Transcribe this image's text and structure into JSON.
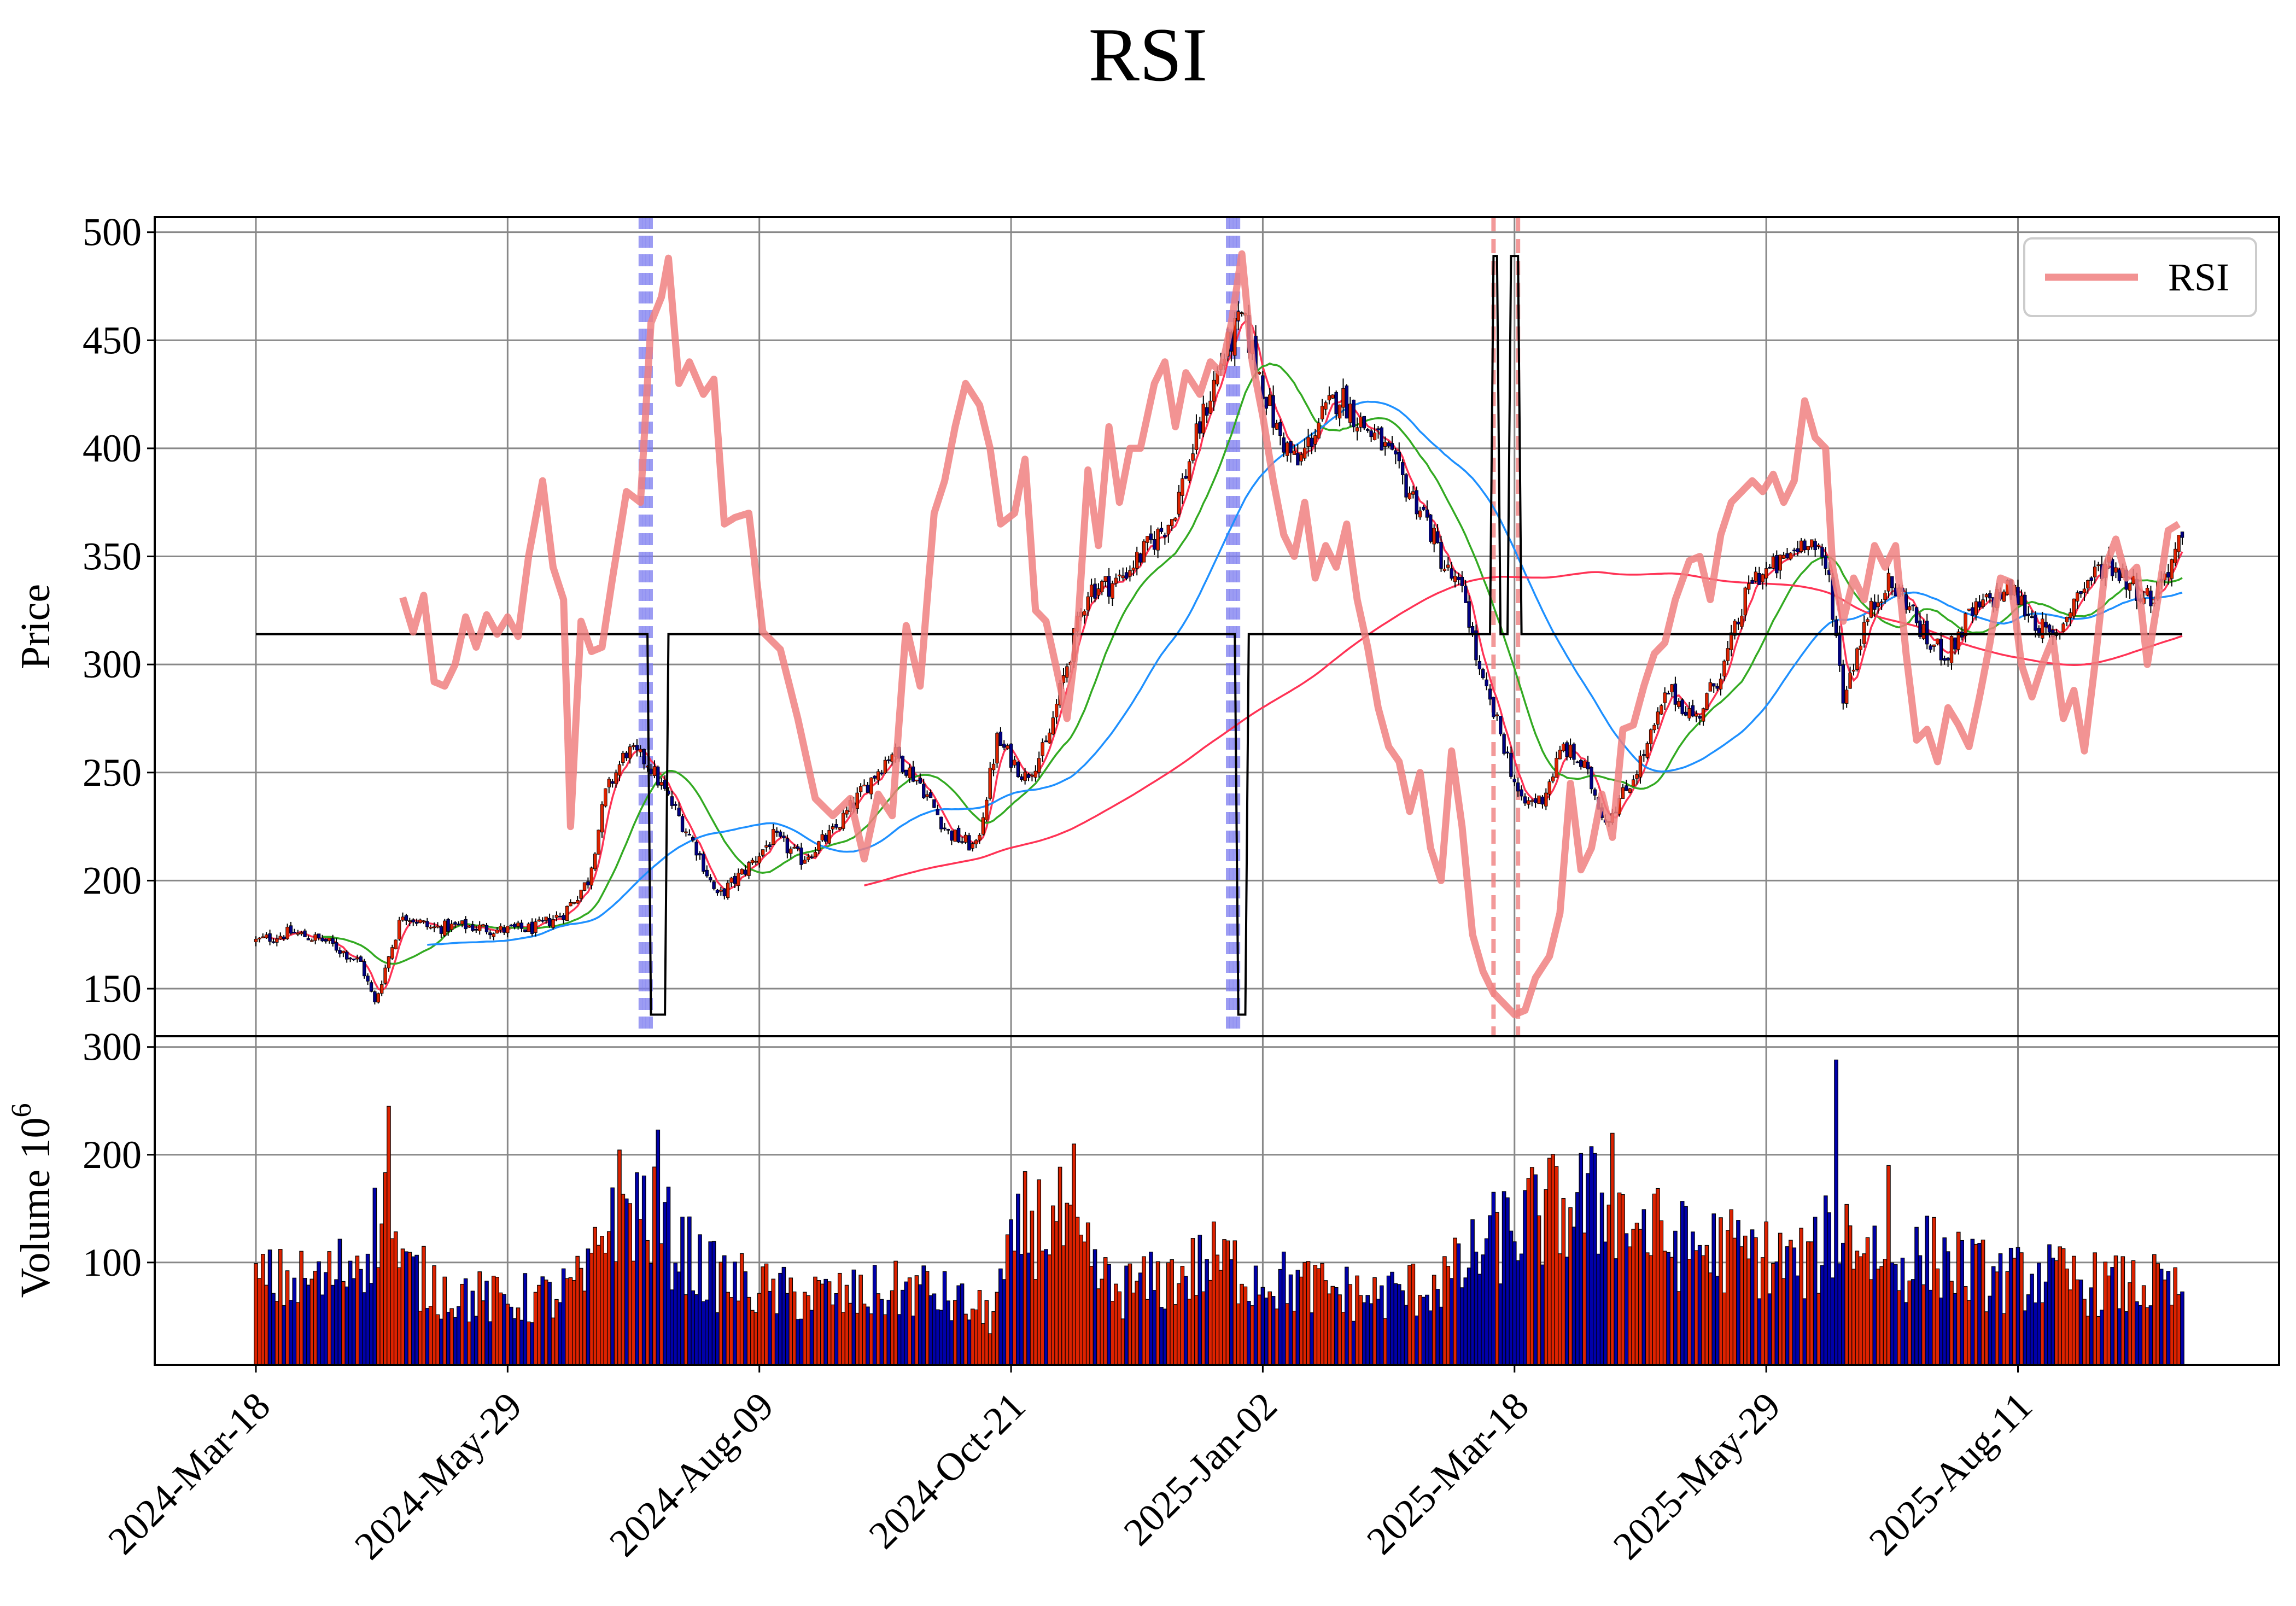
{
  "chart_data": {
    "type": "candlestick",
    "title": "RSI",
    "xticks": [
      "2024-Mar-18",
      "2024-May-29",
      "2024-Aug-09",
      "2024-Oct-21",
      "2025-Jan-02",
      "2025-Mar-18",
      "2025-May-29",
      "2025-Aug-11"
    ],
    "price_panel": {
      "ylabel": "Price",
      "ylim": [
        128,
        507
      ],
      "yticks": [
        150,
        200,
        250,
        300,
        350,
        400,
        450,
        500
      ],
      "grid": true,
      "legend": {
        "position": "top-right",
        "entries": [
          {
            "label": "RSI",
            "color": "#f08080"
          }
        ]
      },
      "price_anchors": [
        [
          0,
          172
        ],
        [
          10,
          176
        ],
        [
          20,
          172
        ],
        [
          30,
          162
        ],
        [
          34,
          143
        ],
        [
          38,
          165
        ],
        [
          42,
          185
        ],
        [
          50,
          178
        ],
        [
          60,
          179
        ],
        [
          70,
          177
        ],
        [
          80,
          178
        ],
        [
          88,
          185
        ],
        [
          95,
          200
        ],
        [
          100,
          240
        ],
        [
          106,
          260
        ],
        [
          112,
          255
        ],
        [
          118,
          238
        ],
        [
          126,
          215
        ],
        [
          132,
          192
        ],
        [
          140,
          205
        ],
        [
          148,
          220
        ],
        [
          156,
          210
        ],
        [
          165,
          222
        ],
        [
          175,
          245
        ],
        [
          182,
          260
        ],
        [
          190,
          245
        ],
        [
          198,
          222
        ],
        [
          206,
          215
        ],
        [
          212,
          265
        ],
        [
          220,
          248
        ],
        [
          226,
          262
        ],
        [
          232,
          300
        ],
        [
          238,
          335
        ],
        [
          246,
          338
        ],
        [
          254,
          352
        ],
        [
          262,
          368
        ],
        [
          270,
          410
        ],
        [
          276,
          440
        ],
        [
          282,
          460
        ],
        [
          286,
          440
        ],
        [
          292,
          408
        ],
        [
          298,
          392
        ],
        [
          304,
          412
        ],
        [
          310,
          425
        ],
        [
          316,
          412
        ],
        [
          322,
          402
        ],
        [
          328,
          385
        ],
        [
          334,
          370
        ],
        [
          340,
          345
        ],
        [
          346,
          330
        ],
        [
          350,
          295
        ],
        [
          356,
          268
        ],
        [
          362,
          235
        ],
        [
          368,
          238
        ],
        [
          374,
          262
        ],
        [
          380,
          252
        ],
        [
          386,
          228
        ],
        [
          392,
          242
        ],
        [
          398,
          262
        ],
        [
          404,
          288
        ],
        [
          412,
          275
        ],
        [
          420,
          300
        ],
        [
          428,
          340
        ],
        [
          436,
          346
        ],
        [
          444,
          360
        ],
        [
          450,
          340
        ],
        [
          454,
          285
        ],
        [
          460,
          318
        ],
        [
          466,
          338
        ],
        [
          472,
          330
        ],
        [
          478,
          310
        ],
        [
          484,
          305
        ],
        [
          490,
          322
        ],
        [
          496,
          330
        ],
        [
          502,
          335
        ],
        [
          508,
          322
        ],
        [
          514,
          310
        ],
        [
          520,
          330
        ],
        [
          526,
          342
        ],
        [
          530,
          348
        ],
        [
          536,
          338
        ],
        [
          542,
          330
        ],
        [
          548,
          348
        ],
        [
          550,
          355
        ]
      ],
      "rsi_series": {
        "name": "RSI",
        "color": "#f08080",
        "anchors": [
          [
            42,
            331
          ],
          [
            45,
            315
          ],
          [
            48,
            332
          ],
          [
            51,
            292
          ],
          [
            54,
            290
          ],
          [
            57,
            300
          ],
          [
            60,
            322
          ],
          [
            63,
            308
          ],
          [
            66,
            323
          ],
          [
            69,
            314
          ],
          [
            72,
            322
          ],
          [
            75,
            313
          ],
          [
            78,
            350
          ],
          [
            82,
            385
          ],
          [
            85,
            345
          ],
          [
            88,
            330
          ],
          [
            90,
            225
          ],
          [
            93,
            320
          ],
          [
            96,
            306
          ],
          [
            99,
            308
          ],
          [
            102,
            340
          ],
          [
            106,
            380
          ],
          [
            110,
            375
          ],
          [
            113,
            458
          ],
          [
            116,
            470
          ],
          [
            118,
            488
          ],
          [
            121,
            430
          ],
          [
            124,
            440
          ],
          [
            128,
            425
          ],
          [
            131,
            432
          ],
          [
            134,
            365
          ],
          [
            137,
            368
          ],
          [
            141,
            370
          ],
          [
            145,
            315
          ],
          [
            150,
            307
          ],
          [
            155,
            275
          ],
          [
            160,
            238
          ],
          [
            165,
            230
          ],
          [
            170,
            238
          ],
          [
            174,
            210
          ],
          [
            178,
            240
          ],
          [
            182,
            230
          ],
          [
            186,
            318
          ],
          [
            190,
            290
          ],
          [
            194,
            370
          ],
          [
            197,
            385
          ],
          [
            200,
            410
          ],
          [
            203,
            430
          ],
          [
            207,
            420
          ],
          [
            210,
            400
          ],
          [
            213,
            365
          ],
          [
            217,
            370
          ],
          [
            220,
            395
          ],
          [
            223,
            325
          ],
          [
            226,
            320
          ],
          [
            229,
            298
          ],
          [
            232,
            275
          ],
          [
            235,
            315
          ],
          [
            238,
            390
          ],
          [
            241,
            355
          ],
          [
            244,
            410
          ],
          [
            247,
            375
          ],
          [
            250,
            400
          ],
          [
            253,
            400
          ],
          [
            257,
            430
          ],
          [
            260,
            440
          ],
          [
            263,
            410
          ],
          [
            266,
            435
          ],
          [
            270,
            425
          ],
          [
            273,
            440
          ],
          [
            276,
            435
          ],
          [
            279,
            458
          ],
          [
            282,
            490
          ],
          [
            285,
            440
          ],
          [
            288,
            415
          ],
          [
            291,
            385
          ],
          [
            294,
            360
          ],
          [
            297,
            350
          ],
          [
            300,
            375
          ],
          [
            303,
            340
          ],
          [
            306,
            355
          ],
          [
            309,
            345
          ],
          [
            312,
            365
          ],
          [
            315,
            330
          ],
          [
            318,
            308
          ],
          [
            321,
            280
          ],
          [
            324,
            262
          ],
          [
            327,
            255
          ],
          [
            330,
            232
          ],
          [
            333,
            250
          ],
          [
            336,
            215
          ],
          [
            339,
            200
          ],
          [
            342,
            260
          ],
          [
            345,
            225
          ],
          [
            348,
            175
          ],
          [
            351,
            158
          ],
          [
            354,
            148
          ],
          [
            357,
            143
          ],
          [
            360,
            138
          ],
          [
            363,
            140
          ],
          [
            366,
            155
          ],
          [
            370,
            165
          ],
          [
            373,
            185
          ],
          [
            376,
            245
          ],
          [
            379,
            205
          ],
          [
            382,
            215
          ],
          [
            385,
            240
          ],
          [
            388,
            220
          ],
          [
            391,
            270
          ],
          [
            394,
            272
          ],
          [
            397,
            290
          ],
          [
            400,
            305
          ],
          [
            403,
            310
          ],
          [
            406,
            330
          ],
          [
            410,
            348
          ],
          [
            413,
            350
          ],
          [
            416,
            330
          ],
          [
            419,
            360
          ],
          [
            422,
            375
          ],
          [
            425,
            380
          ],
          [
            428,
            385
          ],
          [
            431,
            380
          ],
          [
            434,
            388
          ],
          [
            437,
            375
          ],
          [
            440,
            385
          ],
          [
            443,
            422
          ],
          [
            446,
            405
          ],
          [
            449,
            400
          ],
          [
            451,
            345
          ],
          [
            454,
            320
          ],
          [
            457,
            340
          ],
          [
            460,
            330
          ],
          [
            463,
            355
          ],
          [
            466,
            345
          ],
          [
            469,
            355
          ],
          [
            472,
            305
          ],
          [
            475,
            265
          ],
          [
            478,
            270
          ],
          [
            481,
            255
          ],
          [
            484,
            280
          ],
          [
            487,
            272
          ],
          [
            490,
            262
          ],
          [
            493,
            285
          ],
          [
            496,
            310
          ],
          [
            499,
            340
          ],
          [
            502,
            338
          ],
          [
            505,
            300
          ],
          [
            508,
            285
          ],
          [
            511,
            300
          ],
          [
            514,
            312
          ],
          [
            517,
            275
          ],
          [
            520,
            288
          ],
          [
            523,
            260
          ],
          [
            526,
            300
          ],
          [
            529,
            345
          ],
          [
            532,
            358
          ],
          [
            535,
            340
          ],
          [
            538,
            345
          ],
          [
            541,
            300
          ],
          [
            544,
            330
          ],
          [
            547,
            362
          ],
          [
            550,
            365
          ]
        ]
      },
      "signal_line": {
        "color": "#000000",
        "base": 314,
        "low": 138,
        "high": 489,
        "dips": [
          [
            113,
            117
          ],
          [
            281,
            283
          ]
        ],
        "spikes": [
          [
            354,
            355
          ],
          [
            359,
            361
          ]
        ]
      },
      "signal_markers": {
        "buy": {
          "color": "#7b7bf0",
          "groups": [
            [
              110,
              113
            ],
            [
              278,
              281
            ]
          ]
        },
        "sell": {
          "color": "#f08080",
          "days": [
            354,
            361
          ]
        }
      },
      "moving_averages": [
        {
          "color": "#ff3355",
          "window": 5
        },
        {
          "color": "#33aa22",
          "window": 20
        },
        {
          "color": "#1e90ff",
          "window": 50
        },
        {
          "color": "#ff3355",
          "window": 175
        }
      ]
    },
    "volume_panel": {
      "ylabel": "Volume",
      "ylabel_exponent": "10",
      "ylabel_exponent_power": "6",
      "ylim": [
        5,
        310
      ],
      "yticks": [
        100,
        200,
        300
      ],
      "grid": true,
      "up_color": "#dd2200",
      "down_color": "#0000aa",
      "volume_anchors": [
        [
          0,
          85
        ],
        [
          20,
          85
        ],
        [
          30,
          110
        ],
        [
          37,
          150
        ],
        [
          42,
          95
        ],
        [
          55,
          75
        ],
        [
          70,
          65
        ],
        [
          85,
          70
        ],
        [
          95,
          85
        ],
        [
          102,
          160
        ],
        [
          112,
          150
        ],
        [
          120,
          120
        ],
        [
          130,
          90
        ],
        [
          150,
          72
        ],
        [
          170,
          70
        ],
        [
          190,
          78
        ],
        [
          200,
          65
        ],
        [
          210,
          52
        ],
        [
          220,
          140
        ],
        [
          230,
          140
        ],
        [
          236,
          110
        ],
        [
          245,
          75
        ],
        [
          260,
          85
        ],
        [
          275,
          105
        ],
        [
          285,
          90
        ],
        [
          300,
          80
        ],
        [
          320,
          70
        ],
        [
          335,
          80
        ],
        [
          345,
          95
        ],
        [
          352,
          120
        ],
        [
          365,
          145
        ],
        [
          380,
          160
        ],
        [
          392,
          145
        ],
        [
          405,
          120
        ],
        [
          420,
          115
        ],
        [
          435,
          105
        ],
        [
          445,
          100
        ],
        [
          452,
          140
        ],
        [
          460,
          120
        ],
        [
          470,
          100
        ],
        [
          480,
          110
        ],
        [
          490,
          95
        ],
        [
          500,
          85
        ],
        [
          510,
          90
        ],
        [
          520,
          85
        ],
        [
          530,
          80
        ],
        [
          545,
          80
        ],
        [
          550,
          70
        ]
      ],
      "volume_spikes": [
        [
          38,
          245
        ],
        [
          115,
          223
        ],
        [
          452,
          288
        ],
        [
          388,
          220
        ],
        [
          467,
          190
        ],
        [
          234,
          210
        ]
      ]
    }
  }
}
